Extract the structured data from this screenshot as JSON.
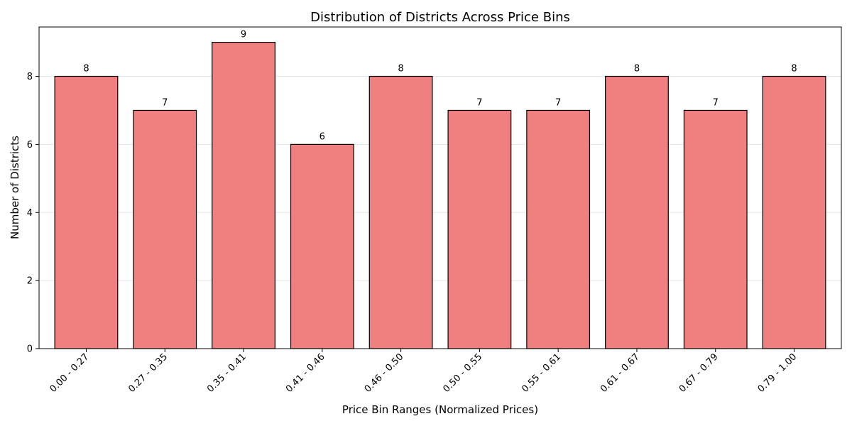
{
  "chart_data": {
    "type": "bar",
    "title": "Distribution of Districts Across Price Bins",
    "xlabel": "Price Bin Ranges (Normalized Prices)",
    "ylabel": "Number of Districts",
    "categories": [
      "0.00 - 0.27",
      "0.27 - 0.35",
      "0.35 - 0.41",
      "0.41 - 0.46",
      "0.46 - 0.50",
      "0.50 - 0.55",
      "0.55 - 0.61",
      "0.61 - 0.67",
      "0.67 - 0.79",
      "0.79 - 1.00"
    ],
    "values": [
      8,
      7,
      9,
      6,
      8,
      7,
      7,
      8,
      7,
      8
    ],
    "ylim": [
      0,
      9.45
    ],
    "yticks": [
      0,
      2,
      4,
      6,
      8
    ],
    "grid": "horizontal",
    "bar_color": "#f08080",
    "edge_color": "#000000"
  }
}
